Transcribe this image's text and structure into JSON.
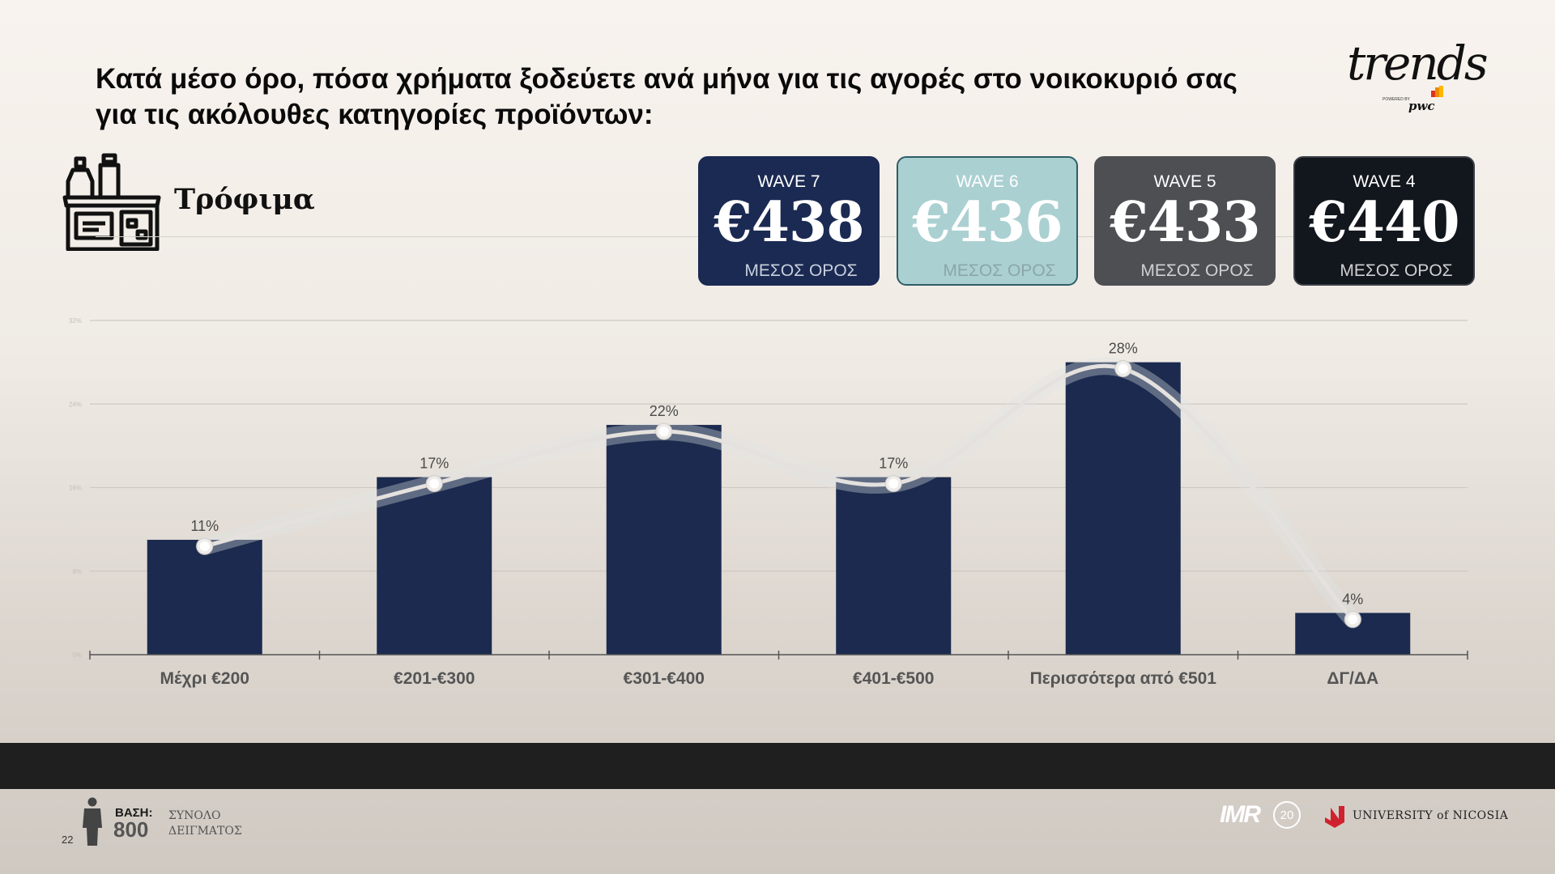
{
  "title": "Κατά μέσο όρο, πόσα χρήματα ξοδεύετε ανά μήνα για τις αγορές στο νοικοκυριό σας για τις ακόλουθες κατηγορίες προϊόντων:",
  "brand": {
    "name": "trends",
    "powered": "POWERED BY",
    "partner": "pwc"
  },
  "category": {
    "label": "Τρόφιμα",
    "icon": "groceries-icon"
  },
  "waves": [
    {
      "label": "WAVE 7",
      "value": "€438",
      "mean_label": "ΜΕΣΟΣ ΟΡΟΣ",
      "bg": "#1b2a52",
      "fg": "#ffffff",
      "mean_fg": "#c9cfdc",
      "border": "#1b2a52"
    },
    {
      "label": "WAVE 6",
      "value": "€436",
      "mean_label": "ΜΕΣΟΣ ΟΡΟΣ",
      "bg": "#abd0d2",
      "fg": "#ffffff",
      "mean_fg": "#8aa6a8",
      "border": "#2e5e66"
    },
    {
      "label": "WAVE 5",
      "value": "€433",
      "mean_label": "ΜΕΣΟΣ ΟΡΟΣ",
      "bg": "#4e4f53",
      "fg": "#ffffff",
      "mean_fg": "#d0d0d2",
      "border": "#4e4f53"
    },
    {
      "label": "WAVE 4",
      "value": "€440",
      "mean_label": "ΜΕΣΟΣ ΟΡΟΣ",
      "bg": "#12161d",
      "fg": "#ffffff",
      "mean_fg": "#d0d0d2",
      "border": "#3a3e46"
    }
  ],
  "chart_data": {
    "type": "bar",
    "categories": [
      "Μέχρι €200",
      "€201-€300",
      "€301-€400",
      "€401-€500",
      "Περισσότερα από €501",
      "ΔΓ/ΔΑ"
    ],
    "values": [
      11,
      17,
      22,
      17,
      28,
      4
    ],
    "data_labels": [
      "11%",
      "17%",
      "22%",
      "17%",
      "28%",
      "4%"
    ],
    "ylim": [
      0,
      32
    ],
    "y_ticks": [
      0,
      8,
      16,
      24,
      32
    ],
    "y_tick_labels": [
      "0%",
      "8%",
      "16%",
      "24%",
      "32%"
    ],
    "grid": true,
    "overlay": "line",
    "bar_color": "#1b2a4e",
    "line_color": "#e4e1de"
  },
  "footer": {
    "base_label": "ΒΑΣΗ:",
    "base_value": "800",
    "base_desc_1": "ΣΥΝΟΛΟ",
    "base_desc_2": "ΔΕΙΓΜΑΤΟΣ",
    "page_number": "22",
    "imr": "IMR",
    "imr_years": "20",
    "university": "UNIVERSITY of NICOSIA"
  }
}
